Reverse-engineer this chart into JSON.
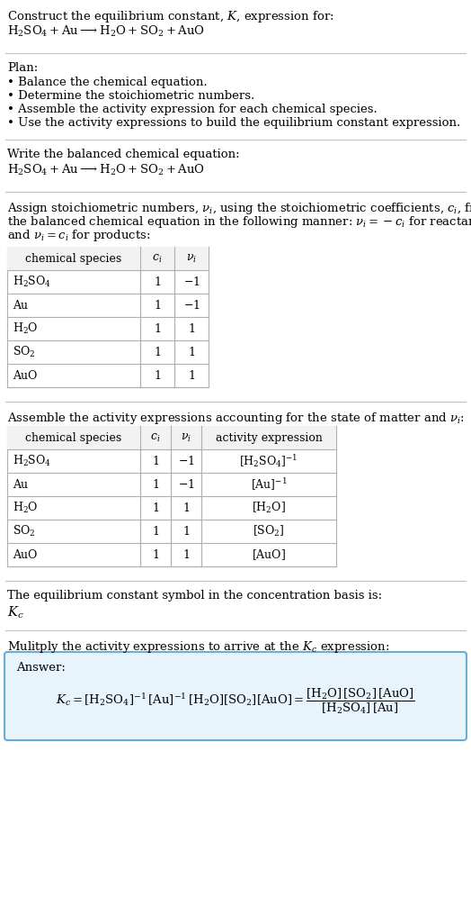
{
  "title_line1": "Construct the equilibrium constant, $K$, expression for:",
  "title_line2": "$\\mathrm{H_2SO_4 + Au \\longrightarrow H_2O + SO_2 + AuO}$",
  "plan_header": "Plan:",
  "plan_items": [
    "• Balance the chemical equation.",
    "• Determine the stoichiometric numbers.",
    "• Assemble the activity expression for each chemical species.",
    "• Use the activity expressions to build the equilibrium constant expression."
  ],
  "balanced_header": "Write the balanced chemical equation:",
  "balanced_eq": "$\\mathrm{H_2SO_4 + Au \\longrightarrow H_2O + SO_2 + AuO}$",
  "stoich_intro_lines": [
    "Assign stoichiometric numbers, $\\nu_i$, using the stoichiometric coefficients, $c_i$, from",
    "the balanced chemical equation in the following manner: $\\nu_i = -c_i$ for reactants",
    "and $\\nu_i = c_i$ for products:"
  ],
  "table1_headers": [
    "chemical species",
    "$c_i$",
    "$\\nu_i$"
  ],
  "table1_rows": [
    [
      "$\\mathrm{H_2SO_4}$",
      "1",
      "$-1$"
    ],
    [
      "Au",
      "1",
      "$-1$"
    ],
    [
      "$\\mathrm{H_2O}$",
      "1",
      "1"
    ],
    [
      "$\\mathrm{SO_2}$",
      "1",
      "1"
    ],
    [
      "AuO",
      "1",
      "1"
    ]
  ],
  "activity_intro": "Assemble the activity expressions accounting for the state of matter and $\\nu_i$:",
  "table2_headers": [
    "chemical species",
    "$c_i$",
    "$\\nu_i$",
    "activity expression"
  ],
  "table2_rows": [
    [
      "$\\mathrm{H_2SO_4}$",
      "1",
      "$-1$",
      "$[\\mathrm{H_2SO_4}]^{-1}$"
    ],
    [
      "Au",
      "1",
      "$-1$",
      "$[\\mathrm{Au}]^{-1}$"
    ],
    [
      "$\\mathrm{H_2O}$",
      "1",
      "1",
      "$[\\mathrm{H_2O}]$"
    ],
    [
      "$\\mathrm{SO_2}$",
      "1",
      "1",
      "$[\\mathrm{SO_2}]$"
    ],
    [
      "AuO",
      "1",
      "1",
      "$[\\mathrm{AuO}]$"
    ]
  ],
  "kc_intro": "The equilibrium constant symbol in the concentration basis is:",
  "kc_symbol": "$K_c$",
  "multiply_intro": "Mulitply the activity expressions to arrive at the $K_c$ expression:",
  "answer_label": "Answer:",
  "bg_color": "#ffffff",
  "text_color": "#000000",
  "table_border_color": "#b0b0b0",
  "answer_box_facecolor": "#e8f4fb",
  "answer_box_edgecolor": "#6aaed6",
  "divider_color": "#c0c0c0",
  "font_size": 9.5,
  "font_size_small": 9.0
}
